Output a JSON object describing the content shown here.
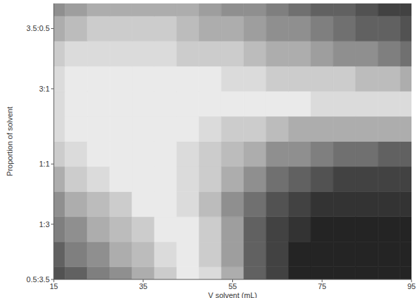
{
  "chart_data": {
    "type": "heatmap",
    "x_label": "V solvent (mL)",
    "y_label": "Proportion of solvent",
    "xlim": [
      15,
      95
    ],
    "xticks": [
      15,
      35,
      55,
      75,
      95
    ],
    "ylim": [
      0,
      1.1
    ],
    "yticks": [
      {
        "value": 0,
        "label": "0.5:3.5"
      },
      {
        "value": 0.22,
        "label": "1:3"
      },
      {
        "value": 0.46,
        "label": "1:1"
      },
      {
        "value": 0.76,
        "label": "3:1"
      },
      {
        "value": 1,
        "label": "3.5:0.5"
      }
    ],
    "x": [
      15,
      20,
      25,
      30,
      35,
      40,
      45,
      50,
      55,
      60,
      65,
      70,
      75,
      80,
      85,
      90,
      95
    ],
    "y": [
      0,
      0.1,
      0.2,
      0.3,
      0.4,
      0.5,
      0.6,
      0.7,
      0.8,
      0.9,
      1.0,
      1.1
    ],
    "cells": [
      [
        2.5,
        3.5,
        4.5,
        5.5,
        7,
        8.5,
        9.5,
        9,
        6.5,
        3.5,
        1.5,
        0.5,
        0,
        0,
        0,
        0,
        0
      ],
      [
        3.5,
        4.5,
        5.5,
        6.5,
        7.5,
        9,
        9.5,
        8.5,
        6,
        3.5,
        1.5,
        0.5,
        0,
        0,
        0,
        0,
        0
      ],
      [
        4.5,
        5.5,
        6.5,
        7.5,
        8.5,
        9.5,
        9.5,
        8,
        6,
        3.5,
        2,
        1,
        0.5,
        0.5,
        0.5,
        0.5,
        0.5
      ],
      [
        5.5,
        6.5,
        7.5,
        8.5,
        9.5,
        10,
        9,
        7.5,
        5.5,
        4,
        2.5,
        1.5,
        1,
        1,
        1,
        1,
        1
      ],
      [
        7,
        8,
        9,
        9.5,
        10,
        9.5,
        9,
        8,
        6.5,
        5,
        4,
        3,
        2.5,
        2,
        2,
        2,
        2
      ],
      [
        8,
        9,
        9.5,
        10,
        10,
        9.5,
        9,
        8.5,
        7.5,
        6.5,
        5.5,
        5,
        4.5,
        4,
        4,
        3.5,
        3.5
      ],
      [
        9,
        9.5,
        10,
        10,
        10,
        9.5,
        9.5,
        9,
        8.5,
        8,
        7.5,
        7,
        7,
        7,
        7,
        6.5,
        6.5
      ],
      [
        9,
        9.5,
        10,
        10,
        10,
        10,
        10,
        9.5,
        9.5,
        9.5,
        9.5,
        9.5,
        9,
        9,
        9,
        9,
        9
      ],
      [
        9,
        9.5,
        9.5,
        9.5,
        9.5,
        9.5,
        9.5,
        9.5,
        9,
        9,
        8.5,
        8.5,
        8,
        8,
        7.5,
        7.5,
        7
      ],
      [
        8.5,
        9,
        9,
        9,
        9,
        9,
        8.5,
        8.5,
        8,
        7.5,
        7,
        6.5,
        6,
        5.5,
        5,
        4.5,
        4
      ],
      [
        7,
        7.5,
        8,
        8,
        8,
        8,
        7.5,
        7,
        6.5,
        6,
        5.5,
        5,
        4.5,
        4,
        3.5,
        3,
        2.5
      ],
      [
        5,
        6,
        6.5,
        7,
        7,
        7,
        6.5,
        6,
        5.5,
        5,
        4.5,
        4,
        3.5,
        3,
        2.5,
        2,
        1.5
      ]
    ]
  }
}
